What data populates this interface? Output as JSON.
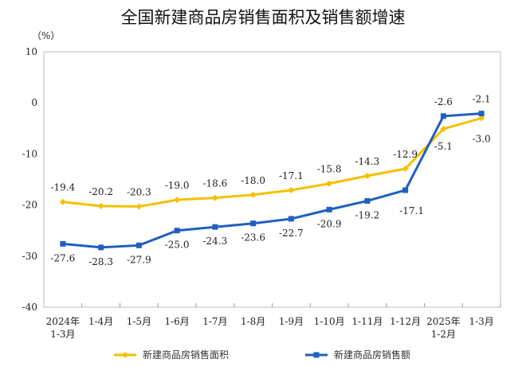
{
  "chart_data": {
    "type": "line",
    "title": "全国新建商品房销售面积及销售额增速",
    "ylabel": "（%）",
    "ylim": [
      -40,
      10
    ],
    "yticks": [
      10,
      0,
      -10,
      -20,
      -30,
      -40
    ],
    "grid": false,
    "legend_position": "bottom",
    "categories": [
      [
        "2024年",
        "1-3月"
      ],
      [
        "1-4月"
      ],
      [
        "1-5月"
      ],
      [
        "1-6月"
      ],
      [
        "1-7月"
      ],
      [
        "1-8月"
      ],
      [
        "1-9月"
      ],
      [
        "1-10月"
      ],
      [
        "1-11月"
      ],
      [
        "1-12月"
      ],
      [
        "2025年",
        "1-2月"
      ],
      [
        "1-3月"
      ]
    ],
    "series": [
      {
        "name": "新建商品房销售面积",
        "color": "#F5C000",
        "marker": "diamond",
        "values": [
          -19.4,
          -20.2,
          -20.3,
          -19.0,
          -18.6,
          -18.0,
          -17.1,
          -15.8,
          -14.3,
          -12.9,
          -5.1,
          -3.0
        ]
      },
      {
        "name": "新建商品房销售额",
        "color": "#1F5FBF",
        "marker": "square",
        "values": [
          -27.6,
          -28.3,
          -27.9,
          -25.0,
          -24.3,
          -23.6,
          -22.7,
          -20.9,
          -19.2,
          -17.1,
          -2.6,
          -2.1
        ]
      }
    ]
  }
}
